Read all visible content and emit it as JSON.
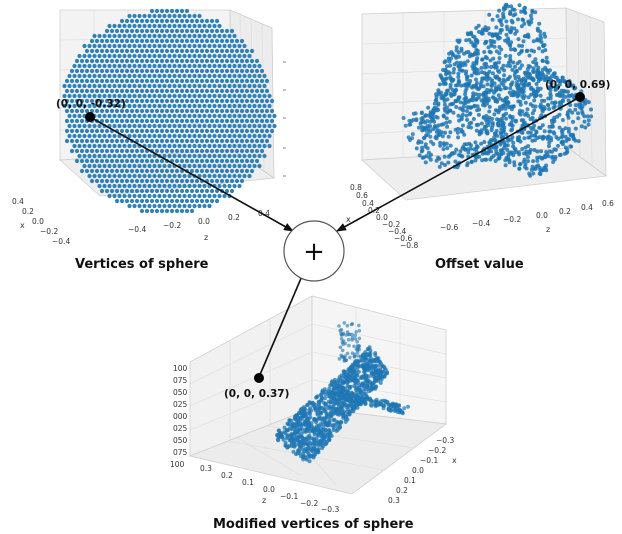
{
  "colors": {
    "points": "#1f77b4",
    "pane": "#f3f3f3",
    "grid": "#dddddd",
    "ink": "#111111"
  },
  "icons": {
    "operator": "plus-icon"
  },
  "operator_symbol": "+",
  "panels": {
    "sphere": {
      "caption": "Vertices of sphere",
      "point_label": "(0, 0, -0.32)",
      "x_label": "x",
      "z_label": "z",
      "x_ticks": [
        "0.4",
        "0.2",
        "0.0",
        "−0.2",
        "−0.4"
      ],
      "z_ticks": [
        "−0.4",
        "−0.2",
        "0.0",
        "0.2",
        "0.4"
      ]
    },
    "offset": {
      "caption": "Offset value",
      "point_label": "(0, 0, 0.69)",
      "x_label": "x",
      "z_label": "z",
      "x_ticks": [
        "0.8",
        "0.6",
        "0.4",
        "0.2",
        "0.0",
        "−0.2",
        "−0.4",
        "−0.6",
        "−0.8"
      ],
      "z_ticks": [
        "−0.6",
        "−0.4",
        "−0.2",
        "0.0",
        "0.2",
        "0.4",
        "0.6"
      ]
    },
    "modified": {
      "caption": "Modified vertices of sphere",
      "point_label": "(0, 0, 0.37)",
      "x_label": "x",
      "z_label": "z",
      "y_ticks": [
        "100",
        "075",
        "050",
        "025",
        "000",
        "025",
        "050",
        "075",
        "100"
      ],
      "z_ticks": [
        "0.3",
        "0.2",
        "0.1",
        "0.0",
        "−0.1",
        "−0.2",
        "−0.3"
      ],
      "x_ticks": [
        "−0.3",
        "−0.2",
        "−0.1",
        "0.0",
        "0.1",
        "0.2",
        "0.3"
      ]
    }
  }
}
